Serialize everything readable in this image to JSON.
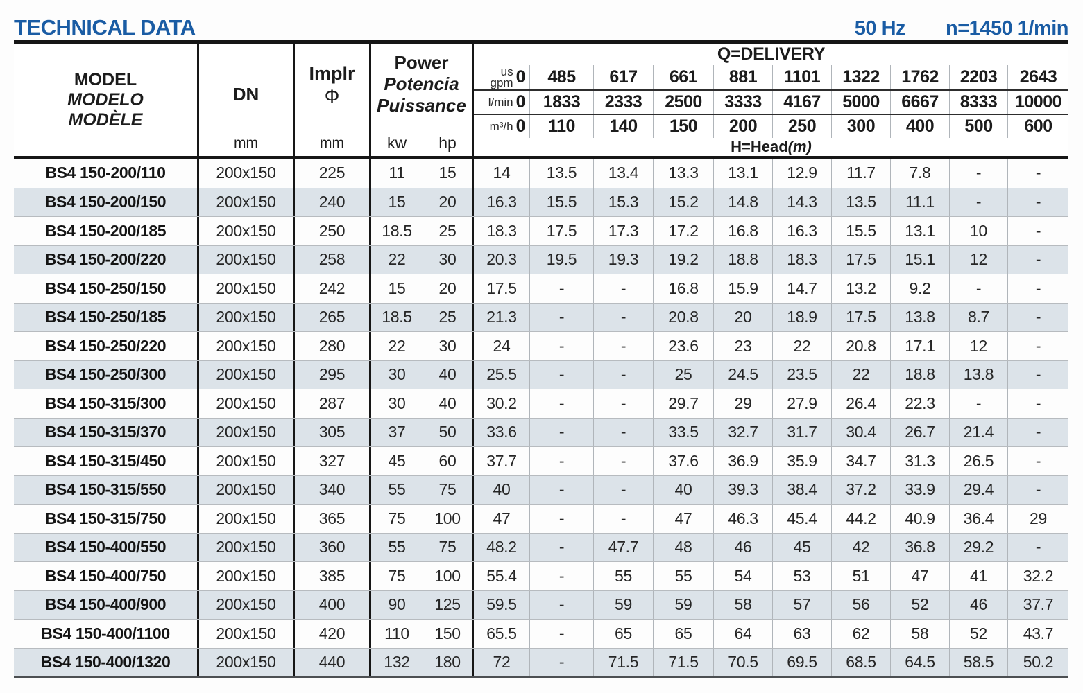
{
  "page": {
    "title": "TECHNICAL DATA",
    "frequency": "50 Hz",
    "speed": "n=1450 1/min",
    "accent_color": "#1a5ca4",
    "stripe_color": "#dce3e9"
  },
  "table": {
    "header": {
      "model_lines": {
        "l1": "MODEL",
        "l2": "MODELO",
        "l3": "MODÈLE"
      },
      "dn_label": "DN",
      "dn_unit": "mm",
      "impeller_label": "Implr",
      "impeller_phi": "Φ",
      "impeller_unit": "mm",
      "power_lines": {
        "l1": "Power",
        "l2": "Potencia",
        "l3": "Puissance"
      },
      "power_unit_kw": "kw",
      "power_unit_hp": "hp",
      "delivery_title": "Q=DELIVERY",
      "head_label": "H=Head",
      "head_unit": "(m)",
      "flow_rows": [
        {
          "unit": "us\ngpm",
          "values": [
            "0",
            "485",
            "617",
            "661",
            "881",
            "1101",
            "1322",
            "1762",
            "2203",
            "2643"
          ]
        },
        {
          "unit": "l/min",
          "values": [
            "0",
            "1833",
            "2333",
            "2500",
            "3333",
            "4167",
            "5000",
            "6667",
            "8333",
            "10000"
          ]
        },
        {
          "unit": "m³/h",
          "values": [
            "0",
            "110",
            "140",
            "150",
            "200",
            "250",
            "300",
            "400",
            "500",
            "600"
          ]
        }
      ]
    },
    "rows": [
      {
        "model": "BS4 150-200/110",
        "dn": "200x150",
        "impeller": "225",
        "kw": "11",
        "hp": "15",
        "head": [
          "14",
          "13.5",
          "13.4",
          "13.3",
          "13.1",
          "12.9",
          "11.7",
          "7.8",
          "-",
          "-"
        ]
      },
      {
        "model": "BS4 150-200/150",
        "dn": "200x150",
        "impeller": "240",
        "kw": "15",
        "hp": "20",
        "head": [
          "16.3",
          "15.5",
          "15.3",
          "15.2",
          "14.8",
          "14.3",
          "13.5",
          "11.1",
          "-",
          "-"
        ]
      },
      {
        "model": "BS4 150-200/185",
        "dn": "200x150",
        "impeller": "250",
        "kw": "18.5",
        "hp": "25",
        "head": [
          "18.3",
          "17.5",
          "17.3",
          "17.2",
          "16.8",
          "16.3",
          "15.5",
          "13.1",
          "10",
          "-"
        ]
      },
      {
        "model": "BS4 150-200/220",
        "dn": "200x150",
        "impeller": "258",
        "kw": "22",
        "hp": "30",
        "head": [
          "20.3",
          "19.5",
          "19.3",
          "19.2",
          "18.8",
          "18.3",
          "17.5",
          "15.1",
          "12",
          "-"
        ]
      },
      {
        "model": "BS4 150-250/150",
        "dn": "200x150",
        "impeller": "242",
        "kw": "15",
        "hp": "20",
        "head": [
          "17.5",
          "-",
          "-",
          "16.8",
          "15.9",
          "14.7",
          "13.2",
          "9.2",
          "-",
          "-"
        ]
      },
      {
        "model": "BS4 150-250/185",
        "dn": "200x150",
        "impeller": "265",
        "kw": "18.5",
        "hp": "25",
        "head": [
          "21.3",
          "-",
          "-",
          "20.8",
          "20",
          "18.9",
          "17.5",
          "13.8",
          "8.7",
          "-"
        ]
      },
      {
        "model": "BS4 150-250/220",
        "dn": "200x150",
        "impeller": "280",
        "kw": "22",
        "hp": "30",
        "head": [
          "24",
          "-",
          "-",
          "23.6",
          "23",
          "22",
          "20.8",
          "17.1",
          "12",
          "-"
        ]
      },
      {
        "model": "BS4 150-250/300",
        "dn": "200x150",
        "impeller": "295",
        "kw": "30",
        "hp": "40",
        "head": [
          "25.5",
          "-",
          "-",
          "25",
          "24.5",
          "23.5",
          "22",
          "18.8",
          "13.8",
          "-"
        ]
      },
      {
        "model": "BS4 150-315/300",
        "dn": "200x150",
        "impeller": "287",
        "kw": "30",
        "hp": "40",
        "head": [
          "30.2",
          "-",
          "-",
          "29.7",
          "29",
          "27.9",
          "26.4",
          "22.3",
          "-",
          "-"
        ]
      },
      {
        "model": "BS4 150-315/370",
        "dn": "200x150",
        "impeller": "305",
        "kw": "37",
        "hp": "50",
        "head": [
          "33.6",
          "-",
          "-",
          "33.5",
          "32.7",
          "31.7",
          "30.4",
          "26.7",
          "21.4",
          "-"
        ]
      },
      {
        "model": "BS4 150-315/450",
        "dn": "200x150",
        "impeller": "327",
        "kw": "45",
        "hp": "60",
        "head": [
          "37.7",
          "-",
          "-",
          "37.6",
          "36.9",
          "35.9",
          "34.7",
          "31.3",
          "26.5",
          "-"
        ]
      },
      {
        "model": "BS4 150-315/550",
        "dn": "200x150",
        "impeller": "340",
        "kw": "55",
        "hp": "75",
        "head": [
          "40",
          "-",
          "-",
          "40",
          "39.3",
          "38.4",
          "37.2",
          "33.9",
          "29.4",
          "-"
        ]
      },
      {
        "model": "BS4 150-315/750",
        "dn": "200x150",
        "impeller": "365",
        "kw": "75",
        "hp": "100",
        "head": [
          "47",
          "-",
          "-",
          "47",
          "46.3",
          "45.4",
          "44.2",
          "40.9",
          "36.4",
          "29"
        ]
      },
      {
        "model": "BS4 150-400/550",
        "dn": "200x150",
        "impeller": "360",
        "kw": "55",
        "hp": "75",
        "head": [
          "48.2",
          "-",
          "47.7",
          "48",
          "46",
          "45",
          "42",
          "36.8",
          "29.2",
          "-"
        ]
      },
      {
        "model": "BS4 150-400/750",
        "dn": "200x150",
        "impeller": "385",
        "kw": "75",
        "hp": "100",
        "head": [
          "55.4",
          "-",
          "55",
          "55",
          "54",
          "53",
          "51",
          "47",
          "41",
          "32.2"
        ]
      },
      {
        "model": "BS4 150-400/900",
        "dn": "200x150",
        "impeller": "400",
        "kw": "90",
        "hp": "125",
        "head": [
          "59.5",
          "-",
          "59",
          "59",
          "58",
          "57",
          "56",
          "52",
          "46",
          "37.7"
        ]
      },
      {
        "model": "BS4 150-400/1100",
        "dn": "200x150",
        "impeller": "420",
        "kw": "110",
        "hp": "150",
        "head": [
          "65.5",
          "-",
          "65",
          "65",
          "64",
          "63",
          "62",
          "58",
          "52",
          "43.7"
        ]
      },
      {
        "model": "BS4 150-400/1320",
        "dn": "200x150",
        "impeller": "440",
        "kw": "132",
        "hp": "180",
        "head": [
          "72",
          "-",
          "71.5",
          "71.5",
          "70.5",
          "69.5",
          "68.5",
          "64.5",
          "58.5",
          "50.2"
        ]
      }
    ]
  }
}
